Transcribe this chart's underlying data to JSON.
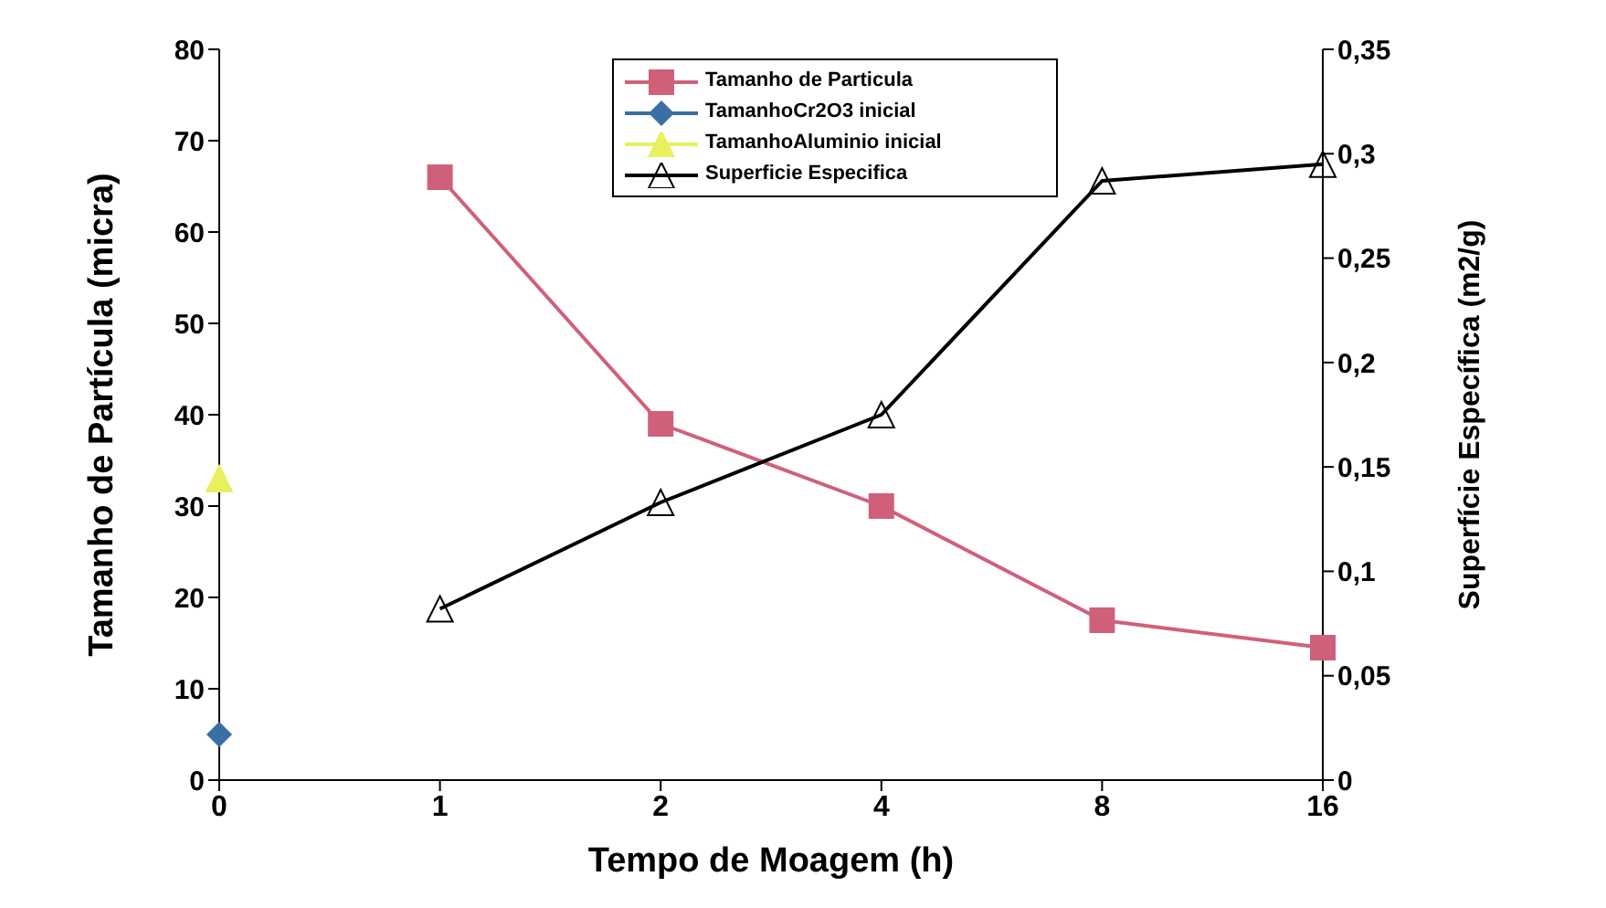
{
  "chart_data": {
    "type": "line",
    "xlabel": "Tempo de Moagem (h)",
    "ylabel": "Tamanho de Partícula (micra)",
    "y2label": "Superfície Específica (m2/g)",
    "categories": [
      "0",
      "1",
      "2",
      "4",
      "8",
      "16"
    ],
    "series": [
      {
        "name": "Tamanho de Particula",
        "color": "#d0607a",
        "marker": "square",
        "values": [
          null,
          66,
          39,
          30,
          17.5,
          14.5
        ]
      },
      {
        "name": "TamanhoCr2O3 inicial",
        "color": "#3a6ea5",
        "marker": "diamond",
        "values": [
          5,
          null,
          null,
          null,
          null,
          null
        ]
      },
      {
        "name": "TamanhoAluminio inicial",
        "color": "#e8f060",
        "marker": "triangle",
        "values": [
          33,
          null,
          null,
          null,
          null,
          null
        ]
      },
      {
        "name": "Superficie Especifica",
        "color": "#000000",
        "marker": "triangle",
        "axis": "y2",
        "values": [
          null,
          0.082,
          0.133,
          0.175,
          0.287,
          0.295
        ]
      }
    ],
    "ylim": [
      0,
      80
    ],
    "yticks": [
      0,
      10,
      20,
      30,
      40,
      50,
      60,
      70,
      80
    ],
    "y2lim": [
      0,
      0.35
    ],
    "y2ticks": [
      0,
      {
        "value": 0.05,
        "label": "0,05"
      },
      {
        "value": 0.1,
        "label": "0,1"
      },
      {
        "value": 0.15,
        "label": "0,15"
      },
      {
        "value": 0.2,
        "label": "0,2"
      },
      {
        "value": 0.25,
        "label": "0,25"
      },
      {
        "value": 0.3,
        "label": "0,3"
      },
      {
        "value": 0.35,
        "label": "0,35"
      }
    ],
    "legend": "top",
    "grid": false
  }
}
